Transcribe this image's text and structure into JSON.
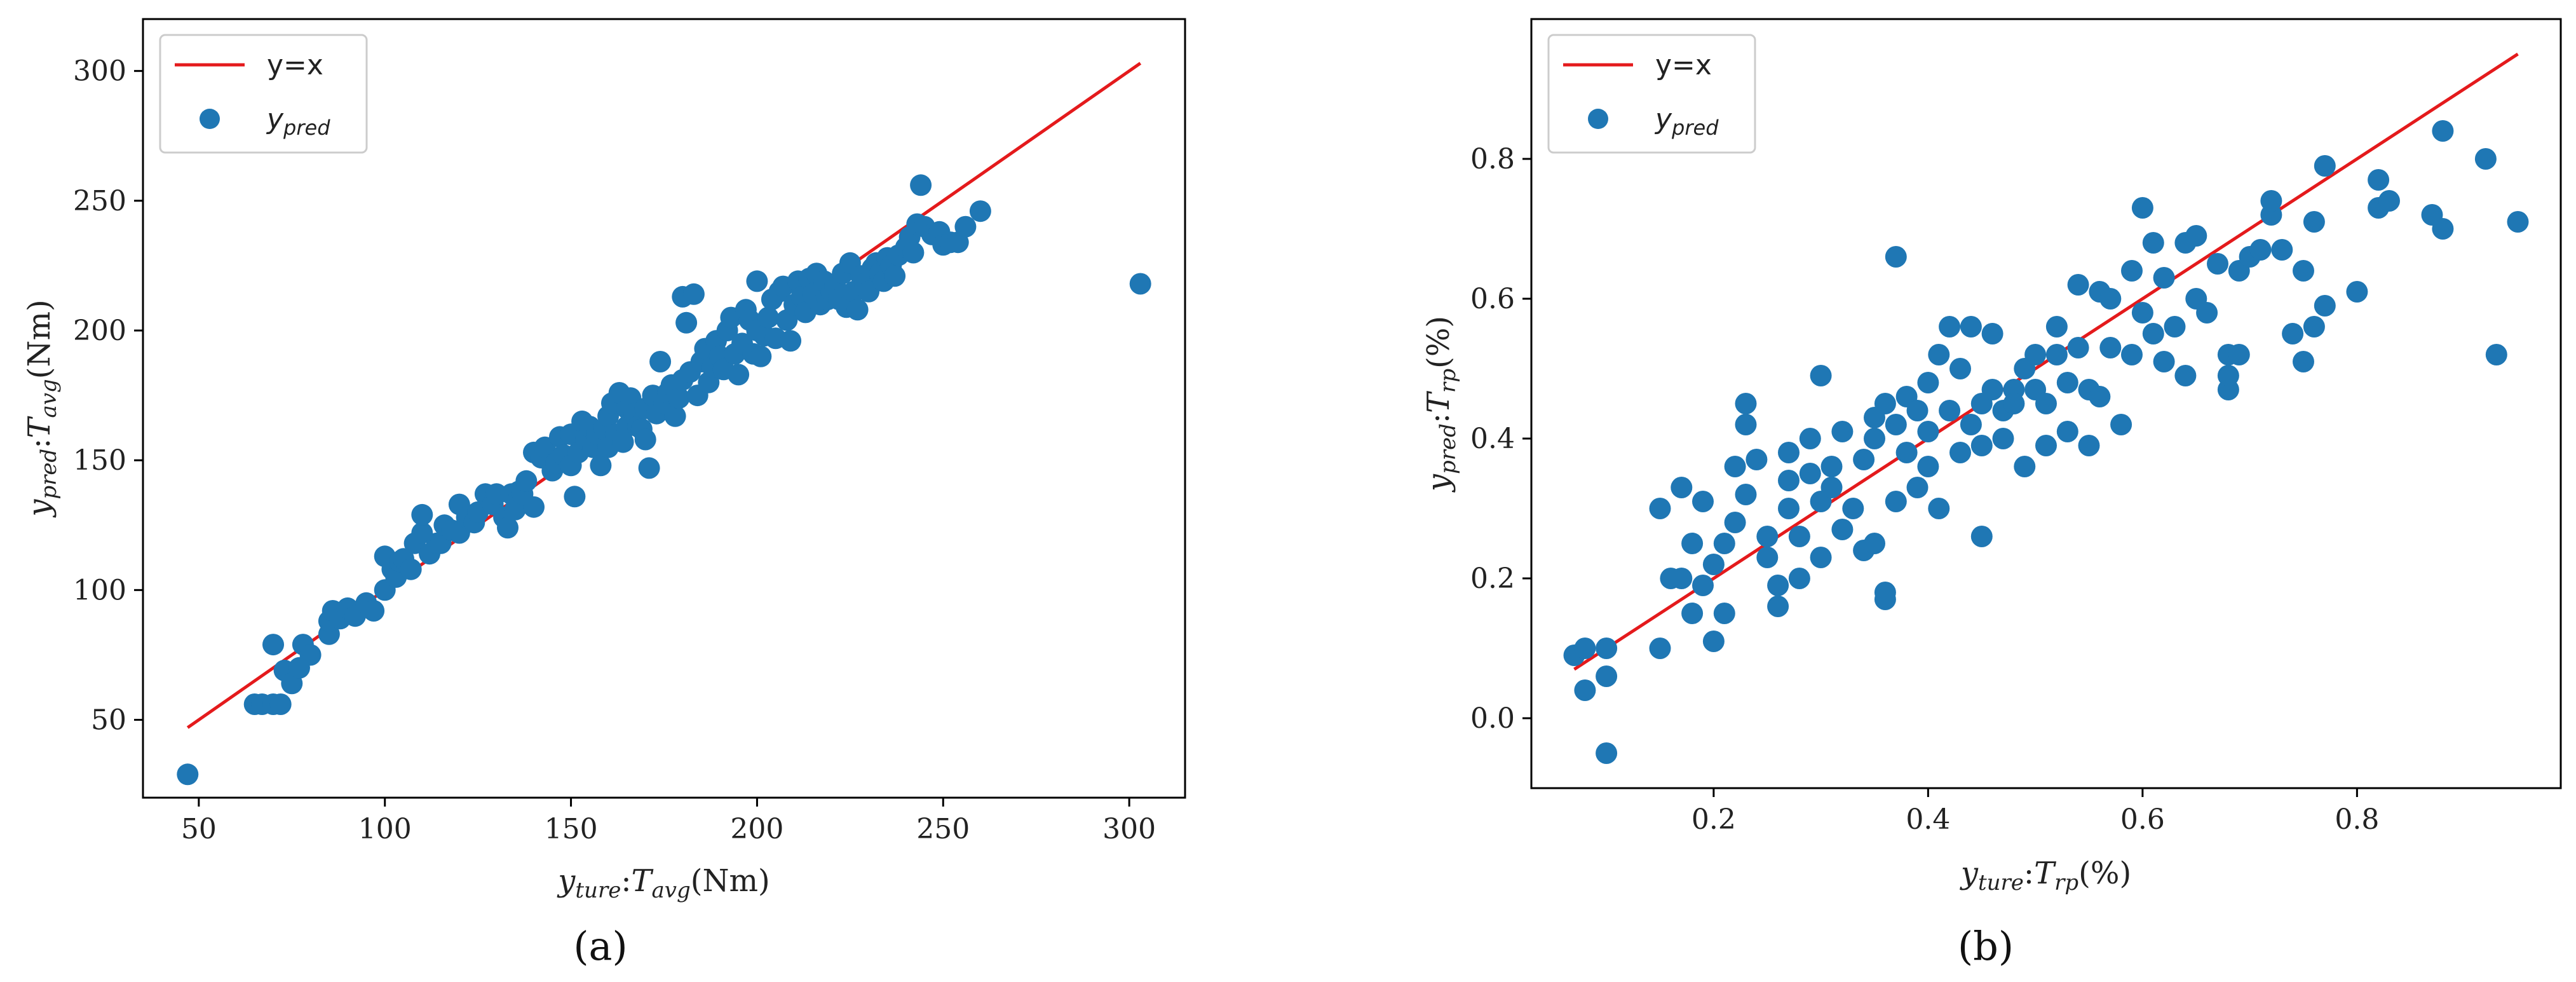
{
  "colors": {
    "identity_line": "#e41a1c",
    "points": "#1f77b4",
    "axes": "#000000"
  },
  "chart_data": [
    {
      "type": "scatter",
      "panel_label": "(a)",
      "xlabel": {
        "main": "y",
        "sub": "ture",
        "mid": ":",
        "var": "T",
        "varsub": "avg",
        "unit": "(Nm)"
      },
      "ylabel": {
        "main": "y",
        "sub": "pred",
        "mid": ":",
        "var": "T",
        "varsub": "avg",
        "unit": "(Nm)"
      },
      "xlim": [
        35,
        315
      ],
      "ylim": [
        20,
        320
      ],
      "xticks": [
        50,
        100,
        150,
        200,
        250,
        300
      ],
      "yticks": [
        50,
        100,
        150,
        200,
        250,
        300
      ],
      "xtick_labels": [
        "50",
        "100",
        "150",
        "200",
        "250",
        "300"
      ],
      "ytick_labels": [
        "50",
        "100",
        "150",
        "200",
        "250",
        "300"
      ],
      "legend": {
        "placement": "top-left",
        "line_label": "y=x",
        "point_main": "y",
        "point_sub": "pred"
      },
      "identity_line": [
        [
          47,
          47
        ],
        [
          303,
          303
        ]
      ],
      "points": [
        [
          47,
          29
        ],
        [
          65,
          56
        ],
        [
          67,
          56
        ],
        [
          70,
          56
        ],
        [
          72,
          56
        ],
        [
          70,
          79
        ],
        [
          73,
          69
        ],
        [
          75,
          64
        ],
        [
          77,
          70
        ],
        [
          78,
          79
        ],
        [
          80,
          75
        ],
        [
          85,
          83
        ],
        [
          85,
          88
        ],
        [
          86,
          92
        ],
        [
          88,
          89
        ],
        [
          90,
          93
        ],
        [
          92,
          90
        ],
        [
          95,
          95
        ],
        [
          97,
          92
        ],
        [
          100,
          100
        ],
        [
          100,
          113
        ],
        [
          102,
          108
        ],
        [
          103,
          105
        ],
        [
          104,
          111
        ],
        [
          105,
          112
        ],
        [
          107,
          108
        ],
        [
          108,
          118
        ],
        [
          110,
          122
        ],
        [
          110,
          129
        ],
        [
          112,
          114
        ],
        [
          114,
          118
        ],
        [
          115,
          118
        ],
        [
          116,
          125
        ],
        [
          118,
          123
        ],
        [
          120,
          122
        ],
        [
          120,
          133
        ],
        [
          122,
          128
        ],
        [
          124,
          126
        ],
        [
          125,
          130
        ],
        [
          127,
          137
        ],
        [
          129,
          133
        ],
        [
          130,
          137
        ],
        [
          132,
          128
        ],
        [
          133,
          124
        ],
        [
          134,
          137
        ],
        [
          135,
          131
        ],
        [
          136,
          138
        ],
        [
          137,
          137
        ],
        [
          138,
          142
        ],
        [
          140,
          153
        ],
        [
          140,
          132
        ],
        [
          142,
          151
        ],
        [
          143,
          155
        ],
        [
          145,
          146
        ],
        [
          146,
          149
        ],
        [
          147,
          159
        ],
        [
          148,
          152
        ],
        [
          150,
          160
        ],
        [
          150,
          148
        ],
        [
          151,
          136
        ],
        [
          152,
          153
        ],
        [
          153,
          165
        ],
        [
          154,
          158
        ],
        [
          155,
          163
        ],
        [
          156,
          155
        ],
        [
          157,
          160
        ],
        [
          158,
          148
        ],
        [
          159,
          162
        ],
        [
          160,
          155
        ],
        [
          160,
          167
        ],
        [
          161,
          172
        ],
        [
          162,
          160
        ],
        [
          163,
          176
        ],
        [
          164,
          157
        ],
        [
          165,
          170
        ],
        [
          165,
          163
        ],
        [
          166,
          174
        ],
        [
          167,
          168
        ],
        [
          168,
          163
        ],
        [
          169,
          162
        ],
        [
          170,
          170
        ],
        [
          170,
          158
        ],
        [
          171,
          147
        ],
        [
          172,
          175
        ],
        [
          173,
          168
        ],
        [
          174,
          188
        ],
        [
          175,
          172
        ],
        [
          176,
          176
        ],
        [
          177,
          179
        ],
        [
          178,
          167
        ],
        [
          179,
          174
        ],
        [
          180,
          213
        ],
        [
          180,
          181
        ],
        [
          181,
          203
        ],
        [
          182,
          184
        ],
        [
          183,
          214
        ],
        [
          184,
          175
        ],
        [
          185,
          188
        ],
        [
          186,
          193
        ],
        [
          187,
          180
        ],
        [
          188,
          186
        ],
        [
          189,
          196
        ],
        [
          190,
          190
        ],
        [
          191,
          185
        ],
        [
          192,
          200
        ],
        [
          193,
          205
        ],
        [
          194,
          191
        ],
        [
          195,
          183
        ],
        [
          196,
          195
        ],
        [
          197,
          208
        ],
        [
          198,
          204
        ],
        [
          199,
          191
        ],
        [
          200,
          200
        ],
        [
          200,
          219
        ],
        [
          201,
          190
        ],
        [
          202,
          198
        ],
        [
          203,
          205
        ],
        [
          204,
          212
        ],
        [
          205,
          197
        ],
        [
          206,
          215
        ],
        [
          207,
          217
        ],
        [
          208,
          204
        ],
        [
          209,
          196
        ],
        [
          210,
          210
        ],
        [
          211,
          219
        ],
        [
          212,
          213
        ],
        [
          213,
          207
        ],
        [
          214,
          220
        ],
        [
          215,
          214
        ],
        [
          216,
          222
        ],
        [
          217,
          210
        ],
        [
          218,
          219
        ],
        [
          219,
          212
        ],
        [
          220,
          215
        ],
        [
          221,
          217
        ],
        [
          222,
          212
        ],
        [
          223,
          222
        ],
        [
          224,
          209
        ],
        [
          225,
          226
        ],
        [
          226,
          215
        ],
        [
          227,
          208
        ],
        [
          228,
          221
        ],
        [
          229,
          218
        ],
        [
          230,
          215
        ],
        [
          231,
          224
        ],
        [
          232,
          226
        ],
        [
          233,
          222
        ],
        [
          234,
          219
        ],
        [
          235,
          228
        ],
        [
          236,
          225
        ],
        [
          237,
          221
        ],
        [
          238,
          229
        ],
        [
          240,
          232
        ],
        [
          241,
          236
        ],
        [
          242,
          230
        ],
        [
          243,
          241
        ],
        [
          244,
          256
        ],
        [
          245,
          240
        ],
        [
          247,
          237
        ],
        [
          249,
          238
        ],
        [
          250,
          233
        ],
        [
          252,
          234
        ],
        [
          254,
          234
        ],
        [
          256,
          240
        ],
        [
          260,
          246
        ],
        [
          303,
          218
        ]
      ]
    },
    {
      "type": "scatter",
      "panel_label": "(b)",
      "xlabel": {
        "main": "y",
        "sub": "ture",
        "mid": ":",
        "var": "T",
        "varsub": "rp",
        "unit": "(%)"
      },
      "ylabel": {
        "main": "y",
        "sub": "pred",
        "mid": ":",
        "var": "T",
        "varsub": "rp",
        "unit": "(%)"
      },
      "xlim": [
        0.03,
        0.99
      ],
      "ylim": [
        -0.1,
        1.0
      ],
      "xticks": [
        0.2,
        0.4,
        0.6,
        0.8
      ],
      "yticks": [
        0.0,
        0.2,
        0.4,
        0.6,
        0.8
      ],
      "xtick_labels": [
        "0.2",
        "0.4",
        "0.6",
        "0.8"
      ],
      "ytick_labels": [
        "0.0",
        "0.2",
        "0.4",
        "0.6",
        "0.8"
      ],
      "legend": {
        "placement": "top-left",
        "line_label": "y=x",
        "point_main": "y",
        "point_sub": "pred"
      },
      "identity_line": [
        [
          0.07,
          0.07
        ],
        [
          0.95,
          0.95
        ]
      ],
      "points": [
        [
          0.07,
          0.09
        ],
        [
          0.08,
          0.04
        ],
        [
          0.08,
          0.1
        ],
        [
          0.1,
          0.06
        ],
        [
          0.1,
          -0.05
        ],
        [
          0.1,
          0.1
        ],
        [
          0.15,
          0.1
        ],
        [
          0.15,
          0.3
        ],
        [
          0.16,
          0.2
        ],
        [
          0.17,
          0.33
        ],
        [
          0.17,
          0.2
        ],
        [
          0.18,
          0.15
        ],
        [
          0.18,
          0.25
        ],
        [
          0.19,
          0.19
        ],
        [
          0.19,
          0.31
        ],
        [
          0.2,
          0.11
        ],
        [
          0.2,
          0.22
        ],
        [
          0.21,
          0.25
        ],
        [
          0.21,
          0.15
        ],
        [
          0.22,
          0.28
        ],
        [
          0.22,
          0.36
        ],
        [
          0.23,
          0.45
        ],
        [
          0.23,
          0.42
        ],
        [
          0.23,
          0.32
        ],
        [
          0.24,
          0.37
        ],
        [
          0.25,
          0.23
        ],
        [
          0.25,
          0.26
        ],
        [
          0.26,
          0.19
        ],
        [
          0.26,
          0.16
        ],
        [
          0.27,
          0.34
        ],
        [
          0.27,
          0.38
        ],
        [
          0.27,
          0.3
        ],
        [
          0.28,
          0.26
        ],
        [
          0.28,
          0.2
        ],
        [
          0.29,
          0.4
        ],
        [
          0.29,
          0.35
        ],
        [
          0.3,
          0.23
        ],
        [
          0.3,
          0.31
        ],
        [
          0.3,
          0.49
        ],
        [
          0.31,
          0.33
        ],
        [
          0.31,
          0.36
        ],
        [
          0.32,
          0.41
        ],
        [
          0.32,
          0.27
        ],
        [
          0.33,
          0.3
        ],
        [
          0.34,
          0.24
        ],
        [
          0.34,
          0.37
        ],
        [
          0.35,
          0.43
        ],
        [
          0.35,
          0.25
        ],
        [
          0.35,
          0.4
        ],
        [
          0.36,
          0.18
        ],
        [
          0.36,
          0.17
        ],
        [
          0.36,
          0.45
        ],
        [
          0.37,
          0.42
        ],
        [
          0.37,
          0.31
        ],
        [
          0.37,
          0.66
        ],
        [
          0.38,
          0.38
        ],
        [
          0.38,
          0.46
        ],
        [
          0.39,
          0.44
        ],
        [
          0.39,
          0.33
        ],
        [
          0.4,
          0.41
        ],
        [
          0.4,
          0.48
        ],
        [
          0.4,
          0.36
        ],
        [
          0.41,
          0.3
        ],
        [
          0.41,
          0.52
        ],
        [
          0.42,
          0.44
        ],
        [
          0.42,
          0.56
        ],
        [
          0.43,
          0.38
        ],
        [
          0.43,
          0.5
        ],
        [
          0.44,
          0.42
        ],
        [
          0.44,
          0.56
        ],
        [
          0.45,
          0.45
        ],
        [
          0.45,
          0.39
        ],
        [
          0.45,
          0.26
        ],
        [
          0.46,
          0.47
        ],
        [
          0.46,
          0.55
        ],
        [
          0.47,
          0.4
        ],
        [
          0.47,
          0.44
        ],
        [
          0.48,
          0.47
        ],
        [
          0.48,
          0.45
        ],
        [
          0.49,
          0.36
        ],
        [
          0.49,
          0.5
        ],
        [
          0.5,
          0.47
        ],
        [
          0.5,
          0.52
        ],
        [
          0.51,
          0.39
        ],
        [
          0.51,
          0.45
        ],
        [
          0.52,
          0.56
        ],
        [
          0.52,
          0.52
        ],
        [
          0.53,
          0.48
        ],
        [
          0.53,
          0.41
        ],
        [
          0.54,
          0.62
        ],
        [
          0.54,
          0.53
        ],
        [
          0.55,
          0.47
        ],
        [
          0.55,
          0.39
        ],
        [
          0.56,
          0.61
        ],
        [
          0.56,
          0.46
        ],
        [
          0.57,
          0.6
        ],
        [
          0.57,
          0.53
        ],
        [
          0.58,
          0.42
        ],
        [
          0.59,
          0.64
        ],
        [
          0.59,
          0.52
        ],
        [
          0.6,
          0.58
        ],
        [
          0.6,
          0.73
        ],
        [
          0.61,
          0.55
        ],
        [
          0.61,
          0.68
        ],
        [
          0.62,
          0.51
        ],
        [
          0.62,
          0.63
        ],
        [
          0.63,
          0.56
        ],
        [
          0.64,
          0.68
        ],
        [
          0.64,
          0.49
        ],
        [
          0.65,
          0.6
        ],
        [
          0.65,
          0.69
        ],
        [
          0.66,
          0.58
        ],
        [
          0.67,
          0.65
        ],
        [
          0.68,
          0.52
        ],
        [
          0.68,
          0.47
        ],
        [
          0.68,
          0.49
        ],
        [
          0.69,
          0.64
        ],
        [
          0.69,
          0.52
        ],
        [
          0.7,
          0.66
        ],
        [
          0.71,
          0.67
        ],
        [
          0.72,
          0.72
        ],
        [
          0.72,
          0.74
        ],
        [
          0.73,
          0.67
        ],
        [
          0.74,
          0.55
        ],
        [
          0.75,
          0.51
        ],
        [
          0.75,
          0.64
        ],
        [
          0.76,
          0.71
        ],
        [
          0.76,
          0.56
        ],
        [
          0.77,
          0.59
        ],
        [
          0.77,
          0.79
        ],
        [
          0.8,
          0.61
        ],
        [
          0.82,
          0.73
        ],
        [
          0.82,
          0.77
        ],
        [
          0.83,
          0.74
        ],
        [
          0.87,
          0.72
        ],
        [
          0.88,
          0.84
        ],
        [
          0.88,
          0.7
        ],
        [
          0.92,
          0.8
        ],
        [
          0.93,
          0.52
        ],
        [
          0.95,
          0.71
        ]
      ]
    }
  ]
}
